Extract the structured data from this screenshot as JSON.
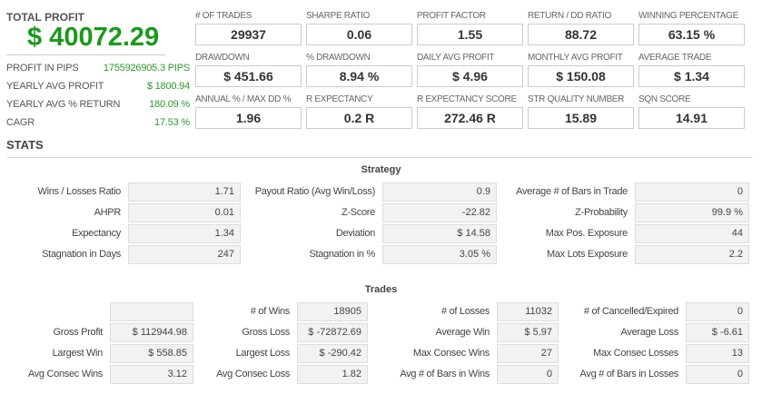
{
  "summary": {
    "total_profit_label": "TOTAL PROFIT",
    "total_profit": "$ 40072.29",
    "rows": [
      {
        "label": "PROFIT IN PIPS",
        "value": "1755926905.3 PIPS"
      },
      {
        "label": "YEARLY AVG PROFIT",
        "value": "$ 1800.94"
      },
      {
        "label": "YEARLY AVG % RETURN",
        "value": "180.09 %"
      },
      {
        "label": "CAGR",
        "value": "17.53 %"
      }
    ]
  },
  "metrics": [
    [
      {
        "label": "# OF TRADES",
        "value": "29937"
      },
      {
        "label": "SHARPE RATIO",
        "value": "0.06"
      },
      {
        "label": "PROFIT FACTOR",
        "value": "1.55"
      },
      {
        "label": "RETURN / DD RATIO",
        "value": "88.72"
      },
      {
        "label": "WINNING PERCENTAGE",
        "value": "63.15 %"
      }
    ],
    [
      {
        "label": "DRAWDOWN",
        "value": "$ 451.66"
      },
      {
        "label": "% DRAWDOWN",
        "value": "8.94 %"
      },
      {
        "label": "DAILY AVG PROFIT",
        "value": "$ 4.96"
      },
      {
        "label": "MONTHLY AVG PROFIT",
        "value": "$ 150.08"
      },
      {
        "label": "AVERAGE TRADE",
        "value": "$ 1.34"
      }
    ],
    [
      {
        "label": "ANNUAL % / MAX DD %",
        "value": "1.96"
      },
      {
        "label": "R EXPECTANCY",
        "value": "0.2 R"
      },
      {
        "label": "R EXPECTANCY SCORE",
        "value": "272.46 R"
      },
      {
        "label": "STR QUALITY NUMBER",
        "value": "15.89"
      },
      {
        "label": "SQN SCORE",
        "value": "14.91"
      }
    ]
  ],
  "stats_title": "STATS",
  "strategy": {
    "title": "Strategy",
    "rows": [
      [
        [
          "Wins / Losses Ratio",
          "1.71"
        ],
        [
          "Payout Ratio (Avg Win/Loss)",
          "0.9"
        ],
        [
          "Average # of Bars in Trade",
          "0"
        ]
      ],
      [
        [
          "AHPR",
          "0.01"
        ],
        [
          "Z-Score",
          "-22.82"
        ],
        [
          "Z-Probability",
          "99.9 %"
        ]
      ],
      [
        [
          "Expectancy",
          "1.34"
        ],
        [
          "Deviation",
          "$ 14.58"
        ],
        [
          "Max Pos. Exposure",
          "44"
        ]
      ],
      [
        [
          "Stagnation in Days",
          "247"
        ],
        [
          "Stagnation in %",
          "3.05 %"
        ],
        [
          "Max Lots Exposure",
          "2.2"
        ]
      ]
    ]
  },
  "trades": {
    "title": "Trades",
    "rows": [
      [
        [
          "",
          ""
        ],
        [
          "# of Wins",
          "18905"
        ],
        [
          "# of Losses",
          "11032"
        ],
        [
          "# of Cancelled/Expired",
          "0"
        ]
      ],
      [
        [
          "Gross Profit",
          "$ 112944.98"
        ],
        [
          "Gross Loss",
          "$ -72872.69"
        ],
        [
          "Average Win",
          "$ 5.97"
        ],
        [
          "Average Loss",
          "$ -6.61"
        ]
      ],
      [
        [
          "Largest Win",
          "$ 558.85"
        ],
        [
          "Largest Loss",
          "$ -290.42"
        ],
        [
          "Max Consec Wins",
          "27"
        ],
        [
          "Max Consec Losses",
          "13"
        ]
      ],
      [
        [
          "Avg Consec Wins",
          "3.12"
        ],
        [
          "Avg Consec Loss",
          "1.82"
        ],
        [
          "Avg # of Bars in Wins",
          "0"
        ],
        [
          "Avg # of Bars in Losses",
          "0"
        ]
      ]
    ]
  }
}
